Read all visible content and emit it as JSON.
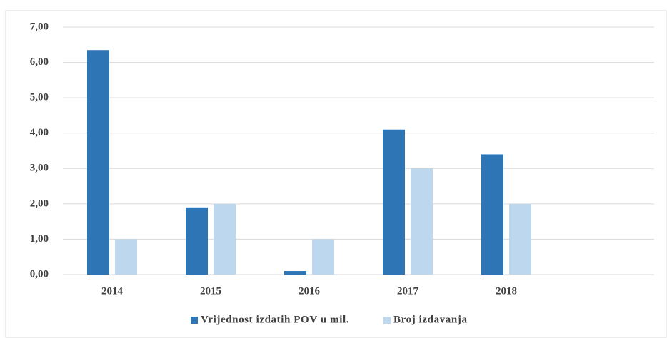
{
  "chart_data": {
    "type": "bar",
    "categories": [
      "2014",
      "2015",
      "2016",
      "2017",
      "2018",
      null
    ],
    "series": [
      {
        "name": "Vrijednost izdatih POV u mil.",
        "color": "#2e75b6",
        "values": [
          6.35,
          1.9,
          0.1,
          4.1,
          3.4,
          null
        ]
      },
      {
        "name": "Broj izdavanja",
        "color": "#bdd7ee",
        "values": [
          1,
          2,
          1,
          3,
          2,
          null
        ]
      }
    ],
    "ylim": [
      0,
      7
    ],
    "yticks": [
      {
        "value": 0,
        "label": "0,00"
      },
      {
        "value": 1,
        "label": "1,00"
      },
      {
        "value": 2,
        "label": "2,00"
      },
      {
        "value": 3,
        "label": "3,00"
      },
      {
        "value": 4,
        "label": "4,00"
      },
      {
        "value": 5,
        "label": "5,00"
      },
      {
        "value": 6,
        "label": "6,00"
      },
      {
        "value": 7,
        "label": "7,00"
      }
    ],
    "grid": true,
    "legend": "bottom"
  }
}
